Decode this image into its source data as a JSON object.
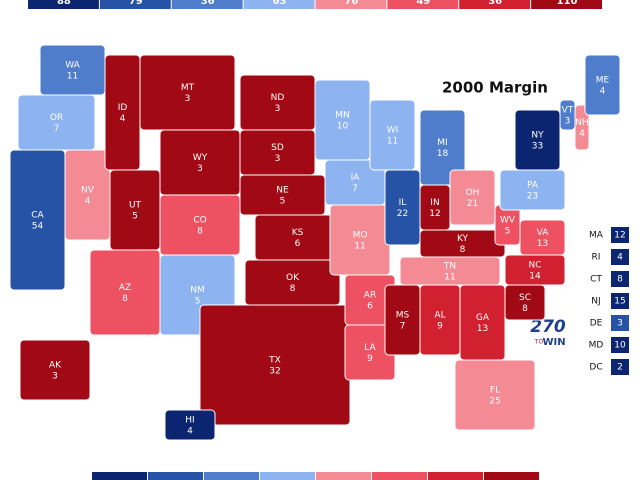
{
  "map": {
    "title": "2000 Margin",
    "legend": [
      {
        "color": "#0b2570",
        "value": 88
      },
      {
        "color": "#2653a6",
        "value": 79
      },
      {
        "color": "#4f7dcc",
        "value": 36
      },
      {
        "color": "#8db4f0",
        "value": 63
      },
      {
        "color": "#f48a93",
        "value": 76
      },
      {
        "color": "#ee5161",
        "value": 49
      },
      {
        "color": "#d1202f",
        "value": 36
      },
      {
        "color": "#a10a14",
        "value": 110
      }
    ],
    "states": [
      {
        "abbr": "WA",
        "votes": 11,
        "color": "#4f7dcc"
      },
      {
        "abbr": "OR",
        "votes": 7,
        "color": "#8db4f0"
      },
      {
        "abbr": "CA",
        "votes": 54,
        "color": "#2653a6"
      },
      {
        "abbr": "NV",
        "votes": 4,
        "color": "#f48a93"
      },
      {
        "abbr": "ID",
        "votes": 4,
        "color": "#a10a14"
      },
      {
        "abbr": "MT",
        "votes": 3,
        "color": "#a10a14"
      },
      {
        "abbr": "WY",
        "votes": 3,
        "color": "#a10a14"
      },
      {
        "abbr": "UT",
        "votes": 5,
        "color": "#a10a14"
      },
      {
        "abbr": "CO",
        "votes": 8,
        "color": "#ee5161"
      },
      {
        "abbr": "AZ",
        "votes": 8,
        "color": "#ee5161"
      },
      {
        "abbr": "NM",
        "votes": 5,
        "color": "#8db4f0"
      },
      {
        "abbr": "ND",
        "votes": 3,
        "color": "#a10a14"
      },
      {
        "abbr": "SD",
        "votes": 3,
        "color": "#a10a14"
      },
      {
        "abbr": "NE",
        "votes": 5,
        "color": "#a10a14"
      },
      {
        "abbr": "KS",
        "votes": 6,
        "color": "#a10a14"
      },
      {
        "abbr": "OK",
        "votes": 8,
        "color": "#a10a14"
      },
      {
        "abbr": "TX",
        "votes": 32,
        "color": "#a10a14"
      },
      {
        "abbr": "MN",
        "votes": 10,
        "color": "#8db4f0"
      },
      {
        "abbr": "IA",
        "votes": 7,
        "color": "#8db4f0"
      },
      {
        "abbr": "MO",
        "votes": 11,
        "color": "#f48a93"
      },
      {
        "abbr": "AR",
        "votes": 6,
        "color": "#ee5161"
      },
      {
        "abbr": "LA",
        "votes": 9,
        "color": "#ee5161"
      },
      {
        "abbr": "WI",
        "votes": 11,
        "color": "#8db4f0"
      },
      {
        "abbr": "IL",
        "votes": 22,
        "color": "#2653a6"
      },
      {
        "abbr": "MI",
        "votes": 18,
        "color": "#4f7dcc"
      },
      {
        "abbr": "IN",
        "votes": 12,
        "color": "#a10a14"
      },
      {
        "abbr": "OH",
        "votes": 21,
        "color": "#f48a93"
      },
      {
        "abbr": "KY",
        "votes": 8,
        "color": "#a10a14"
      },
      {
        "abbr": "TN",
        "votes": 11,
        "color": "#f48a93"
      },
      {
        "abbr": "MS",
        "votes": 7,
        "color": "#a10a14"
      },
      {
        "abbr": "AL",
        "votes": 9,
        "color": "#d1202f"
      },
      {
        "abbr": "GA",
        "votes": 13,
        "color": "#d1202f"
      },
      {
        "abbr": "FL",
        "votes": 25,
        "color": "#f48a93"
      },
      {
        "abbr": "SC",
        "votes": 8,
        "color": "#a10a14"
      },
      {
        "abbr": "NC",
        "votes": 14,
        "color": "#d1202f"
      },
      {
        "abbr": "WV",
        "votes": 5,
        "color": "#ee5161"
      },
      {
        "abbr": "VA",
        "votes": 13,
        "color": "#ee5161"
      },
      {
        "abbr": "PA",
        "votes": 23,
        "color": "#8db4f0"
      },
      {
        "abbr": "NY",
        "votes": 33,
        "color": "#0b2570"
      },
      {
        "abbr": "VT",
        "votes": 3,
        "color": "#4f7dcc"
      },
      {
        "abbr": "NH",
        "votes": 4,
        "color": "#f48a93"
      },
      {
        "abbr": "ME",
        "votes": 4,
        "color": "#4f7dcc"
      },
      {
        "abbr": "AK",
        "votes": 3,
        "color": "#a10a14"
      },
      {
        "abbr": "HI",
        "votes": 4,
        "color": "#0b2570"
      }
    ],
    "small_states": [
      {
        "abbr": "MA",
        "votes": 12,
        "color": "#0b2570"
      },
      {
        "abbr": "RI",
        "votes": 4,
        "color": "#0b2570"
      },
      {
        "abbr": "CT",
        "votes": 8,
        "color": "#0b2570"
      },
      {
        "abbr": "NJ",
        "votes": 15,
        "color": "#0b2570"
      },
      {
        "abbr": "DE",
        "votes": 3,
        "color": "#2653a6"
      },
      {
        "abbr": "MD",
        "votes": 10,
        "color": "#0b2570"
      },
      {
        "abbr": "DC",
        "votes": 2,
        "color": "#0b2570"
      }
    ],
    "logo": {
      "number": "270",
      "to": "TO",
      "win": "WIN"
    }
  }
}
